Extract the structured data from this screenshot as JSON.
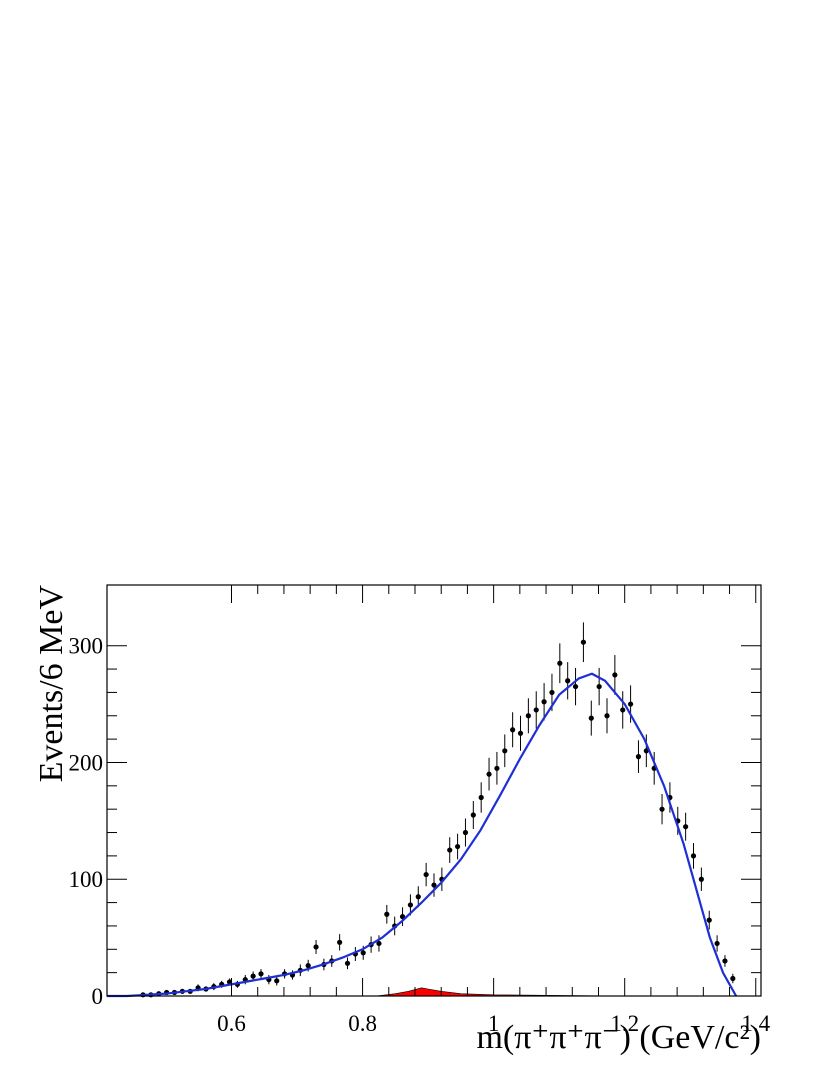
{
  "chart_data": {
    "type": "errorbar",
    "x_label": "m(π⁺π⁺π⁻) (GeV/c²)",
    "y_label": "Events/6 MeV",
    "xlim": [
      0.41,
      1.408
    ],
    "ylim": [
      0,
      352
    ],
    "xticks": [
      0.6,
      0.8,
      1,
      1.2,
      1.4
    ],
    "yticks": [
      0,
      100,
      200,
      300
    ],
    "points": {
      "color": "#000000",
      "x": [
        0.465,
        0.477,
        0.489,
        0.501,
        0.513,
        0.525,
        0.537,
        0.549,
        0.561,
        0.573,
        0.585,
        0.597,
        0.609,
        0.621,
        0.633,
        0.645,
        0.657,
        0.669,
        0.681,
        0.693,
        0.705,
        0.717,
        0.729,
        0.741,
        0.753,
        0.765,
        0.777,
        0.789,
        0.801,
        0.813,
        0.825,
        0.837,
        0.849,
        0.861,
        0.873,
        0.885,
        0.897,
        0.909,
        0.921,
        0.933,
        0.945,
        0.957,
        0.969,
        0.981,
        0.993,
        1.005,
        1.017,
        1.029,
        1.041,
        1.053,
        1.065,
        1.077,
        1.089,
        1.101,
        1.113,
        1.125,
        1.137,
        1.149,
        1.161,
        1.173,
        1.185,
        1.197,
        1.209,
        1.221,
        1.233,
        1.245,
        1.257,
        1.269,
        1.281,
        1.293,
        1.305,
        1.317,
        1.329,
        1.341,
        1.353,
        1.365
      ],
      "values": [
        1,
        1,
        2,
        3,
        3,
        4,
        4,
        7,
        6,
        8,
        10,
        12,
        10,
        14,
        17,
        19,
        14,
        13,
        19,
        18,
        22,
        26,
        42,
        27,
        30,
        46,
        28,
        36,
        37,
        44,
        45,
        70,
        60,
        68,
        78,
        85,
        104,
        95,
        100,
        125,
        128,
        140,
        155,
        170,
        190,
        195,
        210,
        228,
        225,
        240,
        245,
        252,
        260,
        285,
        270,
        265,
        303,
        238,
        265,
        240,
        275,
        245,
        250,
        205,
        210,
        195,
        160,
        170,
        150,
        145,
        120,
        100,
        65,
        45,
        30,
        15
      ],
      "errors": [
        1,
        1,
        1,
        2,
        2,
        2,
        2,
        3,
        2,
        3,
        3,
        3,
        3,
        4,
        4,
        4,
        4,
        4,
        4,
        4,
        5,
        5,
        6,
        5,
        5,
        7,
        5,
        6,
        6,
        7,
        7,
        8,
        8,
        8,
        9,
        9,
        10,
        10,
        10,
        11,
        11,
        12,
        12,
        13,
        14,
        14,
        14,
        15,
        15,
        15,
        16,
        16,
        16,
        17,
        16,
        16,
        17,
        15,
        16,
        15,
        17,
        16,
        16,
        14,
        14,
        14,
        13,
        13,
        12,
        12,
        11,
        10,
        8,
        7,
        5,
        4
      ]
    },
    "fit": {
      "color": "#1f2fd6",
      "x": [
        0.41,
        0.44,
        0.47,
        0.5,
        0.53,
        0.56,
        0.59,
        0.62,
        0.65,
        0.68,
        0.71,
        0.74,
        0.77,
        0.8,
        0.83,
        0.86,
        0.89,
        0.92,
        0.95,
        0.98,
        1.01,
        1.04,
        1.07,
        1.1,
        1.13,
        1.15,
        1.17,
        1.2,
        1.23,
        1.26,
        1.29,
        1.31,
        1.33,
        1.35,
        1.37
      ],
      "values": [
        0,
        0,
        1,
        2,
        4,
        6,
        9,
        12,
        15,
        18,
        22,
        27,
        33,
        40,
        50,
        64,
        80,
        97,
        117,
        142,
        172,
        203,
        232,
        258,
        272,
        276,
        270,
        250,
        220,
        180,
        130,
        90,
        50,
        20,
        0
      ]
    },
    "background": {
      "color": "#ff0000",
      "x": [
        0.82,
        0.85,
        0.87,
        0.89,
        0.9,
        0.92,
        0.95,
        1.0,
        1.1,
        1.2
      ],
      "values": [
        0,
        2,
        4,
        7,
        6,
        4,
        2,
        1,
        0.5,
        0
      ]
    }
  }
}
